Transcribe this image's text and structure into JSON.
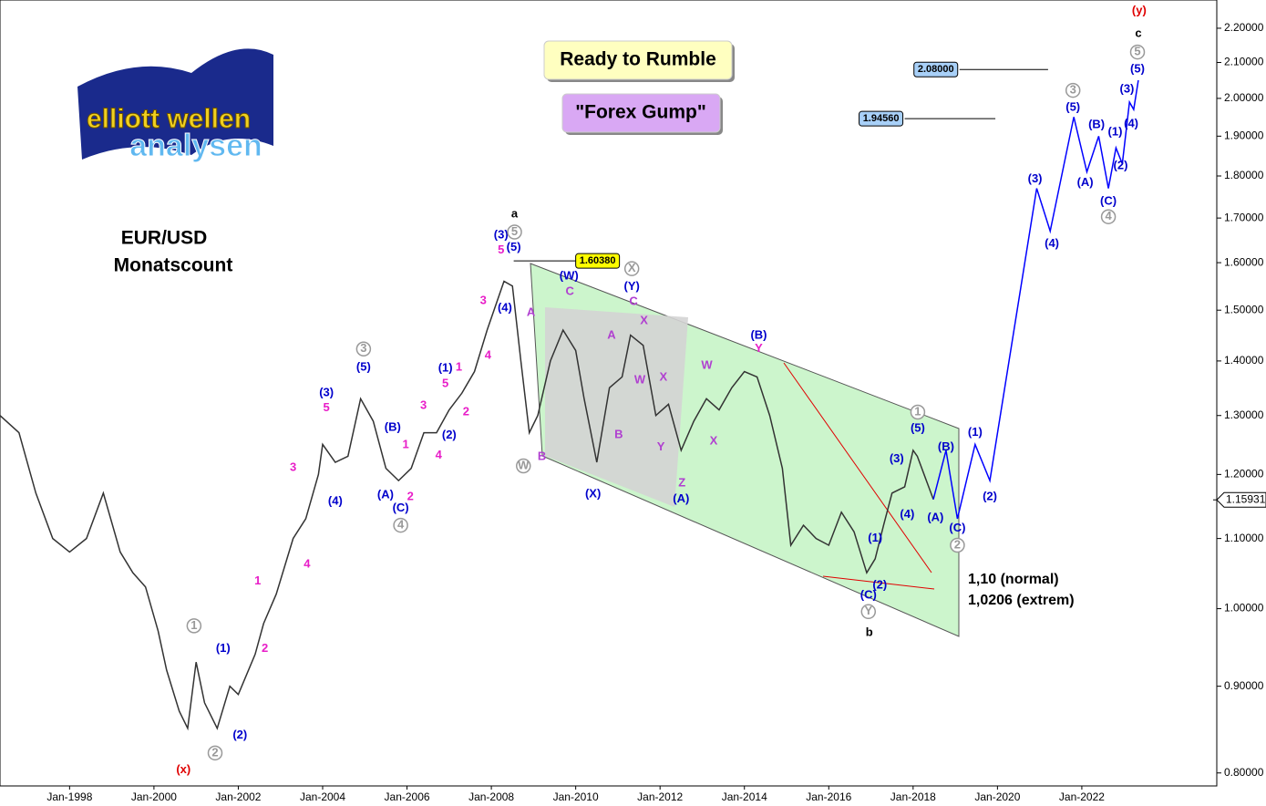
{
  "chart_data": {
    "type": "line",
    "title": "EUR/USD",
    "subtitle": "Monatscount",
    "boxes": [
      "Ready to Rumble",
      "\"Forex Gump\""
    ],
    "notes": [
      "1,10 (normal)",
      "1,0206 (extrem)"
    ],
    "logo": [
      "elliott wellen",
      "analysen"
    ],
    "log_scale": true,
    "xlim": [
      1996.35,
      2025.2
    ],
    "xticks": [
      {
        "value": 1998,
        "label": "Jan-1998"
      },
      {
        "value": 2000,
        "label": "Jan-2000"
      },
      {
        "value": 2002,
        "label": "Jan-2002"
      },
      {
        "value": 2004,
        "label": "Jan-2004"
      },
      {
        "value": 2006,
        "label": "Jan-2006"
      },
      {
        "value": 2008,
        "label": "Jan-2008"
      },
      {
        "value": 2010,
        "label": "Jan-2010"
      },
      {
        "value": 2012,
        "label": "Jan-2012"
      },
      {
        "value": 2014,
        "label": "Jan-2014"
      },
      {
        "value": 2016,
        "label": "Jan-2016"
      },
      {
        "value": 2018,
        "label": "Jan-2018"
      },
      {
        "value": 2020,
        "label": "Jan-2020"
      },
      {
        "value": 2022,
        "label": "Jan-2022"
      }
    ],
    "ylim": [
      0.786,
      2.286
    ],
    "yticks": [
      {
        "value": 0.8,
        "label": "0.80000"
      },
      {
        "value": 0.9,
        "label": "0.90000"
      },
      {
        "value": 1.0,
        "label": "1.00000"
      },
      {
        "value": 1.1,
        "label": "1.10000"
      },
      {
        "value": 1.2,
        "label": "1.20000"
      },
      {
        "value": 1.3,
        "label": "1.30000"
      },
      {
        "value": 1.4,
        "label": "1.40000"
      },
      {
        "value": 1.5,
        "label": "1.50000"
      },
      {
        "value": 1.6,
        "label": "1.60000"
      },
      {
        "value": 1.7,
        "label": "1.70000"
      },
      {
        "value": 1.8,
        "label": "1.80000"
      },
      {
        "value": 1.9,
        "label": "1.90000"
      },
      {
        "value": 2.0,
        "label": "2.00000"
      },
      {
        "value": 2.1,
        "label": "2.10000"
      },
      {
        "value": 2.2,
        "label": "2.20000"
      }
    ],
    "current": {
      "value": 1.15931,
      "label": "1.15931"
    },
    "series": [
      {
        "color": "#333333",
        "x": [
          1996.35,
          1996.8,
          1997.2,
          1997.6,
          1998.0,
          1998.4,
          1998.8,
          1999.2,
          1999.5,
          1999.8,
          2000.1,
          2000.3,
          2000.6,
          2000.8,
          2001.0,
          2001.2,
          2001.5,
          2001.8,
          2002.0,
          2002.4,
          2002.6,
          2002.9,
          2003.3,
          2003.6,
          2003.9,
          2004.0,
          2004.3,
          2004.6,
          2004.9,
          2005.2,
          2005.5,
          2005.8,
          2006.1,
          2006.4,
          2006.7,
          2007.0,
          2007.3,
          2007.6,
          2007.9,
          2008.3,
          2008.5,
          2008.7,
          2008.9,
          2009.1,
          2009.4,
          2009.7,
          2010.0,
          2010.2,
          2010.5,
          2010.8,
          2011.1,
          2011.3,
          2011.6,
          2011.9,
          2012.2,
          2012.5,
          2012.8,
          2013.1,
          2013.4,
          2013.7,
          2014.0,
          2014.3,
          2014.6,
          2014.9,
          2015.1,
          2015.4,
          2015.7,
          2016.0,
          2016.3,
          2016.6,
          2016.9,
          2017.1,
          2017.3,
          2017.5,
          2017.8,
          2018.0,
          2018.1,
          2018.48
        ],
        "values": [
          1.3,
          1.27,
          1.17,
          1.1,
          1.08,
          1.1,
          1.17,
          1.08,
          1.05,
          1.03,
          0.97,
          0.92,
          0.87,
          0.85,
          0.93,
          0.88,
          0.85,
          0.9,
          0.89,
          0.94,
          0.98,
          1.02,
          1.1,
          1.13,
          1.2,
          1.25,
          1.22,
          1.23,
          1.33,
          1.29,
          1.21,
          1.19,
          1.21,
          1.27,
          1.27,
          1.31,
          1.34,
          1.38,
          1.46,
          1.56,
          1.55,
          1.4,
          1.27,
          1.3,
          1.4,
          1.46,
          1.42,
          1.33,
          1.22,
          1.35,
          1.37,
          1.45,
          1.43,
          1.3,
          1.32,
          1.24,
          1.29,
          1.33,
          1.31,
          1.35,
          1.38,
          1.37,
          1.3,
          1.21,
          1.09,
          1.12,
          1.1,
          1.09,
          1.14,
          1.11,
          1.05,
          1.07,
          1.12,
          1.17,
          1.18,
          1.24,
          1.23,
          1.16
        ]
      },
      {
        "color": "#0000ff",
        "x": [
          2018.48,
          2018.78,
          2019.05,
          2019.47,
          2019.82,
          2020.93,
          2021.25,
          2021.81,
          2022.12,
          2022.4,
          2022.63,
          2022.81,
          2022.96,
          2023.13,
          2023.23,
          2023.34
        ],
        "values": [
          1.16,
          1.24,
          1.13,
          1.25,
          1.19,
          1.77,
          1.67,
          1.95,
          1.81,
          1.9,
          1.77,
          1.87,
          1.83,
          1.99,
          1.97,
          2.05
        ]
      }
    ],
    "levels": [
      {
        "value": 1.6038,
        "label": "1.60380",
        "from": 2008.53,
        "to": 2010.0,
        "color": "#ffff00"
      },
      {
        "value": 1.9456,
        "label": "1.94560",
        "from": 2017.8,
        "to": 2019.95,
        "color": "#a8d0f8"
      },
      {
        "value": 2.08,
        "label": "2.08000",
        "from": 2019.1,
        "to": 2021.2,
        "color": "#a8d0f8"
      }
    ],
    "annotations": [
      {
        "text": "(x)",
        "x": 2000.7,
        "y": 0.803,
        "color": "#e00000"
      },
      {
        "text": "2",
        "x": 2001.45,
        "y": 0.822,
        "color": "#999999",
        "circled": true
      },
      {
        "text": "1",
        "x": 2000.95,
        "y": 0.977,
        "color": "#999999",
        "circled": true
      },
      {
        "text": "(1)",
        "x": 2001.64,
        "y": 0.947,
        "color": "#0000cc"
      },
      {
        "text": "(2)",
        "x": 2002.04,
        "y": 0.842,
        "color": "#0000cc"
      },
      {
        "text": "1",
        "x": 2002.46,
        "y": 1.038,
        "color": "#e81ec8"
      },
      {
        "text": "2",
        "x": 2002.63,
        "y": 0.947,
        "color": "#e81ec8"
      },
      {
        "text": "3",
        "x": 2003.3,
        "y": 1.211,
        "color": "#e81ec8"
      },
      {
        "text": "4",
        "x": 2003.63,
        "y": 1.062,
        "color": "#e81ec8"
      },
      {
        "text": "5",
        "x": 2004.09,
        "y": 1.313,
        "color": "#e81ec8"
      },
      {
        "text": "(3)",
        "x": 2004.09,
        "y": 1.34,
        "color": "#0000cc"
      },
      {
        "text": "(4)",
        "x": 2004.3,
        "y": 1.157,
        "color": "#0000cc"
      },
      {
        "text": "(5)",
        "x": 2004.97,
        "y": 1.388,
        "color": "#0000cc"
      },
      {
        "text": "3",
        "x": 2004.97,
        "y": 1.423,
        "color": "#999999",
        "circled": true
      },
      {
        "text": "(B)",
        "x": 2005.66,
        "y": 1.279,
        "color": "#0000cc"
      },
      {
        "text": "1",
        "x": 2005.97,
        "y": 1.249,
        "color": "#e81ec8"
      },
      {
        "text": "2",
        "x": 2006.08,
        "y": 1.164,
        "color": "#e81ec8"
      },
      {
        "text": "(A)",
        "x": 2005.49,
        "y": 1.167,
        "color": "#0000cc"
      },
      {
        "text": "(C)",
        "x": 2005.85,
        "y": 1.146,
        "color": "#0000cc"
      },
      {
        "text": "4",
        "x": 2005.85,
        "y": 1.12,
        "color": "#999999",
        "circled": true
      },
      {
        "text": "3",
        "x": 2006.39,
        "y": 1.317,
        "color": "#e81ec8"
      },
      {
        "text": "4",
        "x": 2006.75,
        "y": 1.231,
        "color": "#e81ec8"
      },
      {
        "text": "(2)",
        "x": 2007.0,
        "y": 1.265,
        "color": "#0000cc"
      },
      {
        "text": "5",
        "x": 2006.91,
        "y": 1.357,
        "color": "#e81ec8"
      },
      {
        "text": "(1)",
        "x": 2006.91,
        "y": 1.386,
        "color": "#0000cc"
      },
      {
        "text": "1",
        "x": 2007.23,
        "y": 1.388,
        "color": "#e81ec8"
      },
      {
        "text": "2",
        "x": 2007.4,
        "y": 1.306,
        "color": "#e81ec8"
      },
      {
        "text": "3",
        "x": 2007.81,
        "y": 1.519,
        "color": "#e81ec8"
      },
      {
        "text": "4",
        "x": 2007.92,
        "y": 1.41,
        "color": "#e81ec8"
      },
      {
        "text": "(4)",
        "x": 2008.32,
        "y": 1.504,
        "color": "#0000cc"
      },
      {
        "text": "5",
        "x": 2008.23,
        "y": 1.627,
        "color": "#e81ec8"
      },
      {
        "text": "(3)",
        "x": 2008.23,
        "y": 1.661,
        "color": "#0000cc"
      },
      {
        "text": "(5)",
        "x": 2008.53,
        "y": 1.633,
        "color": "#0000cc"
      },
      {
        "text": "5",
        "x": 2008.55,
        "y": 1.668,
        "color": "#999999",
        "circled": true
      },
      {
        "text": "a",
        "x": 2008.55,
        "y": 1.709,
        "color": "#000000"
      },
      {
        "text": "W",
        "x": 2008.76,
        "y": 1.214,
        "color": "#999999",
        "circled": true
      },
      {
        "text": "B",
        "x": 2009.2,
        "y": 1.229,
        "color": "#b040d0"
      },
      {
        "text": "A",
        "x": 2008.94,
        "y": 1.495,
        "color": "#b040d0"
      },
      {
        "text": "C",
        "x": 2009.86,
        "y": 1.538,
        "color": "#b040d0"
      },
      {
        "text": "(W)",
        "x": 2009.84,
        "y": 1.571,
        "color": "#0000cc"
      },
      {
        "text": "(X)",
        "x": 2010.41,
        "y": 1.168,
        "color": "#0000cc"
      },
      {
        "text": "A",
        "x": 2010.85,
        "y": 1.449,
        "color": "#b040d0"
      },
      {
        "text": "B",
        "x": 2011.02,
        "y": 1.266,
        "color": "#b040d0"
      },
      {
        "text": "(Y)",
        "x": 2011.33,
        "y": 1.548,
        "color": "#0000cc"
      },
      {
        "text": "X",
        "x": 2011.33,
        "y": 1.587,
        "color": "#999999",
        "circled": true
      },
      {
        "text": "C",
        "x": 2011.37,
        "y": 1.517,
        "color": "#b040d0"
      },
      {
        "text": "X",
        "x": 2011.62,
        "y": 1.478,
        "color": "#b040d0"
      },
      {
        "text": "W",
        "x": 2011.52,
        "y": 1.364,
        "color": "#b040d0"
      },
      {
        "text": "X",
        "x": 2012.08,
        "y": 1.369,
        "color": "#b040d0"
      },
      {
        "text": "Y",
        "x": 2012.02,
        "y": 1.245,
        "color": "#b040d0"
      },
      {
        "text": "Z",
        "x": 2012.52,
        "y": 1.186,
        "color": "#b040d0"
      },
      {
        "text": "(A)",
        "x": 2012.5,
        "y": 1.16,
        "color": "#0000cc"
      },
      {
        "text": "W",
        "x": 2013.11,
        "y": 1.391,
        "color": "#b040d0"
      },
      {
        "text": "X",
        "x": 2013.27,
        "y": 1.255,
        "color": "#b040d0"
      },
      {
        "text": "(B)",
        "x": 2014.34,
        "y": 1.449,
        "color": "#0000cc"
      },
      {
        "text": "Y",
        "x": 2014.34,
        "y": 1.423,
        "color": "#e81ec8"
      },
      {
        "text": "1",
        "x": 2018.11,
        "y": 1.306,
        "color": "#999999",
        "circled": true
      },
      {
        "text": "(5)",
        "x": 2018.11,
        "y": 1.277,
        "color": "#0000cc"
      },
      {
        "text": "(3)",
        "x": 2017.61,
        "y": 1.225,
        "color": "#0000cc"
      },
      {
        "text": "(4)",
        "x": 2017.86,
        "y": 1.136,
        "color": "#0000cc"
      },
      {
        "text": "(1)",
        "x": 2017.1,
        "y": 1.1,
        "color": "#0000cc"
      },
      {
        "text": "(2)",
        "x": 2017.21,
        "y": 1.032,
        "color": "#0000cc"
      },
      {
        "text": "(C)",
        "x": 2016.94,
        "y": 1.018,
        "color": "#0000cc"
      },
      {
        "text": "Y",
        "x": 2016.94,
        "y": 0.996,
        "color": "#999999",
        "circled": true
      },
      {
        "text": "b",
        "x": 2016.96,
        "y": 0.968,
        "color": "#000000"
      },
      {
        "text": "(B)",
        "x": 2018.78,
        "y": 1.245,
        "color": "#0000cc"
      },
      {
        "text": "(A)",
        "x": 2018.53,
        "y": 1.131,
        "color": "#0000cc"
      },
      {
        "text": "(C)",
        "x": 2019.05,
        "y": 1.115,
        "color": "#0000cc"
      },
      {
        "text": "2",
        "x": 2019.05,
        "y": 1.09,
        "color": "#999999",
        "circled": true
      },
      {
        "text": "(1)",
        "x": 2019.47,
        "y": 1.27,
        "color": "#0000cc"
      },
      {
        "text": "(2)",
        "x": 2019.82,
        "y": 1.164,
        "color": "#0000cc"
      },
      {
        "text": "(3)",
        "x": 2020.89,
        "y": 1.792,
        "color": "#0000cc"
      },
      {
        "text": "(4)",
        "x": 2021.29,
        "y": 1.641,
        "color": "#0000cc"
      },
      {
        "text": "(5)",
        "x": 2021.79,
        "y": 1.975,
        "color": "#0000cc"
      },
      {
        "text": "3",
        "x": 2021.79,
        "y": 2.022,
        "color": "#999999",
        "circled": true
      },
      {
        "text": "(A)",
        "x": 2022.08,
        "y": 1.783,
        "color": "#0000cc"
      },
      {
        "text": "(B)",
        "x": 2022.35,
        "y": 1.929,
        "color": "#0000cc"
      },
      {
        "text": "(C)",
        "x": 2022.63,
        "y": 1.739,
        "color": "#0000cc"
      },
      {
        "text": "4",
        "x": 2022.63,
        "y": 1.703,
        "color": "#999999",
        "circled": true
      },
      {
        "text": "(1)",
        "x": 2022.79,
        "y": 1.91,
        "color": "#0000cc"
      },
      {
        "text": "(2)",
        "x": 2022.92,
        "y": 1.825,
        "color": "#0000cc"
      },
      {
        "text": "(3)",
        "x": 2023.07,
        "y": 2.024,
        "color": "#0000cc"
      },
      {
        "text": "(4)",
        "x": 2023.17,
        "y": 1.931,
        "color": "#0000cc"
      },
      {
        "text": "(5)",
        "x": 2023.32,
        "y": 2.081,
        "color": "#0000cc"
      },
      {
        "text": "5",
        "x": 2023.32,
        "y": 2.13,
        "color": "#999999",
        "circled": true
      },
      {
        "text": "c",
        "x": 2023.34,
        "y": 2.184,
        "color": "#000000"
      },
      {
        "text": "(y)",
        "x": 2023.36,
        "y": 2.252,
        "color": "#e00000"
      }
    ]
  }
}
